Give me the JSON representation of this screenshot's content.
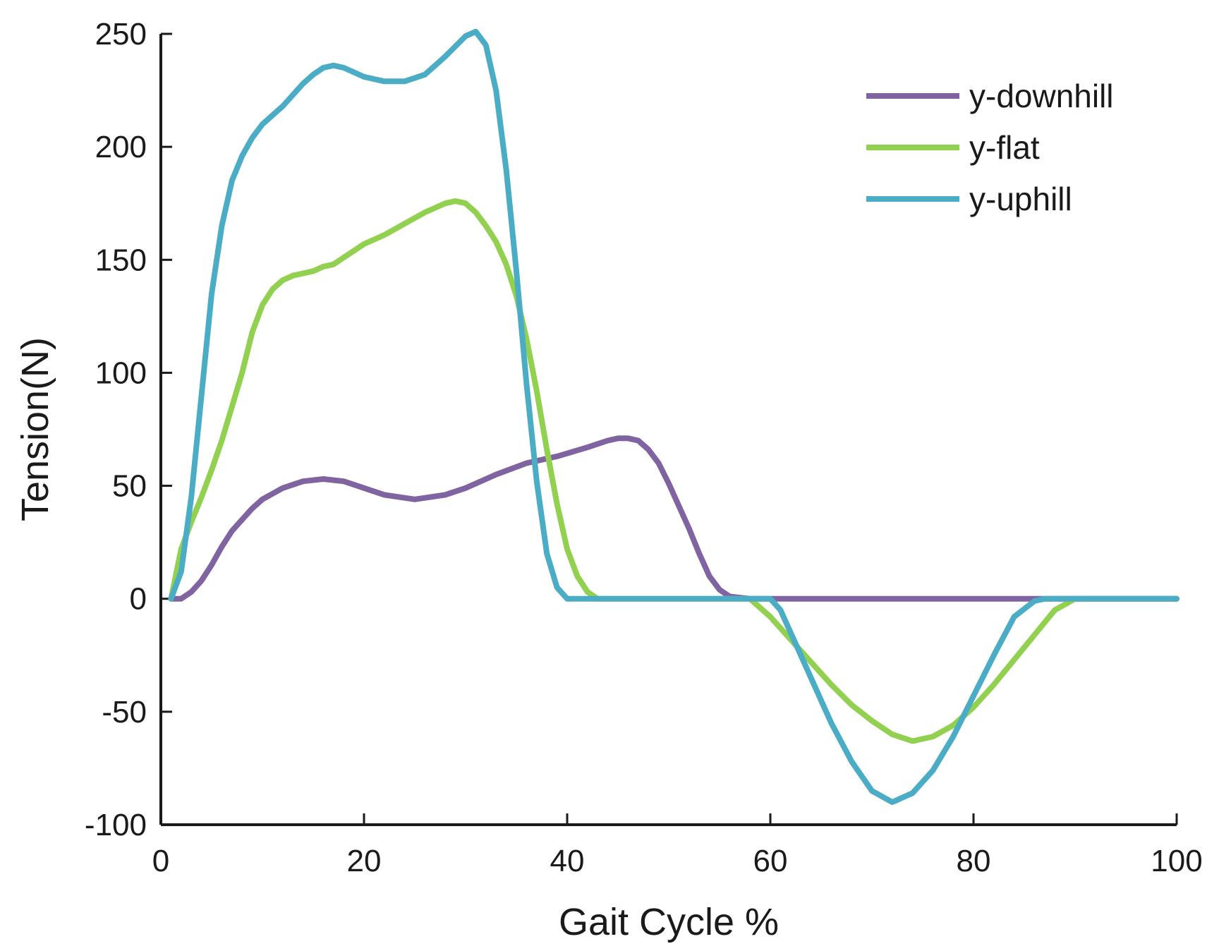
{
  "chart_data": {
    "type": "line",
    "title": "",
    "xlabel": "Gait Cycle %",
    "ylabel": "Tension(N)",
    "xlim": [
      0,
      100
    ],
    "ylim": [
      -100,
      250
    ],
    "xticks": [
      0,
      20,
      40,
      60,
      80,
      100
    ],
    "yticks": [
      -100,
      -50,
      0,
      50,
      100,
      150,
      200,
      250
    ],
    "legend_position": "top-right",
    "grid": false,
    "series": [
      {
        "name": "y-downhill",
        "color": "#8064a2",
        "x": [
          1,
          2,
          3,
          4,
          5,
          6,
          7,
          8,
          9,
          10,
          12,
          14,
          16,
          18,
          20,
          22,
          25,
          28,
          30,
          33,
          36,
          39,
          42,
          44,
          45,
          46,
          47,
          48,
          49,
          50,
          51,
          52,
          53,
          54,
          55,
          56,
          58,
          60,
          70,
          80,
          90,
          100
        ],
        "y": [
          0,
          0,
          3,
          8,
          15,
          23,
          30,
          35,
          40,
          44,
          49,
          52,
          53,
          52,
          49,
          46,
          44,
          46,
          49,
          55,
          60,
          63,
          67,
          70,
          71,
          71,
          70,
          66,
          60,
          51,
          41,
          31,
          20,
          10,
          4,
          1,
          0,
          0,
          0,
          0,
          0,
          0
        ]
      },
      {
        "name": "y-flat",
        "color": "#92d050",
        "x": [
          1,
          2,
          3,
          4,
          5,
          6,
          7,
          8,
          9,
          10,
          11,
          12,
          13,
          14,
          15,
          16,
          17,
          18,
          20,
          22,
          24,
          26,
          28,
          29,
          30,
          31,
          32,
          33,
          34,
          35,
          36,
          37,
          38,
          39,
          40,
          41,
          42,
          43,
          45,
          50,
          55,
          58,
          60,
          62,
          64,
          66,
          68,
          70,
          72,
          74,
          76,
          78,
          80,
          82,
          84,
          86,
          88,
          90,
          95,
          100
        ],
        "y": [
          0,
          22,
          34,
          45,
          57,
          70,
          85,
          100,
          118,
          130,
          137,
          141,
          143,
          144,
          145,
          147,
          148,
          151,
          157,
          161,
          166,
          171,
          175,
          176,
          175,
          171,
          165,
          158,
          148,
          134,
          115,
          92,
          66,
          42,
          22,
          10,
          3,
          0,
          0,
          0,
          0,
          0,
          -8,
          -18,
          -28,
          -38,
          -47,
          -54,
          -60,
          -63,
          -61,
          -56,
          -48,
          -38,
          -27,
          -16,
          -5,
          0,
          0,
          0
        ]
      },
      {
        "name": "y-uphill",
        "color": "#4bacc6",
        "x": [
          1,
          2,
          3,
          4,
          5,
          6,
          7,
          8,
          9,
          10,
          11,
          12,
          13,
          14,
          15,
          16,
          17,
          18,
          19,
          20,
          22,
          24,
          26,
          28,
          30,
          31,
          32,
          33,
          34,
          35,
          36,
          37,
          38,
          39,
          40,
          41,
          42,
          45,
          50,
          55,
          60,
          61,
          62,
          64,
          66,
          68,
          70,
          72,
          74,
          76,
          78,
          80,
          82,
          84,
          86,
          87,
          88,
          90,
          95,
          100
        ],
        "y": [
          0,
          12,
          45,
          90,
          135,
          165,
          185,
          196,
          204,
          210,
          214,
          218,
          223,
          228,
          232,
          235,
          236,
          235,
          233,
          231,
          229,
          229,
          232,
          240,
          249,
          251,
          245,
          225,
          190,
          145,
          95,
          52,
          20,
          5,
          0,
          0,
          0,
          0,
          0,
          0,
          0,
          -5,
          -15,
          -35,
          -55,
          -72,
          -85,
          -90,
          -86,
          -76,
          -61,
          -43,
          -25,
          -8,
          -1,
          0,
          0,
          0,
          0,
          0
        ]
      }
    ]
  }
}
